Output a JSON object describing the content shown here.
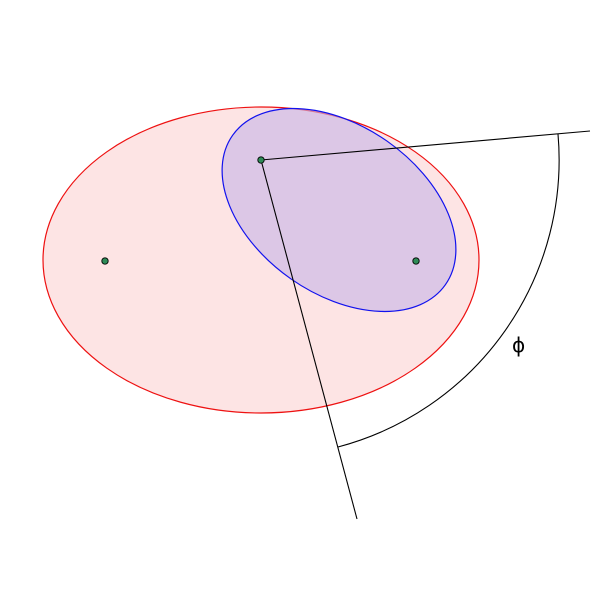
{
  "angle_label": "ϕ",
  "colors": {
    "large_ellipse_stroke": "#ee1111",
    "large_ellipse_fill": "#fde4e4",
    "small_ellipse_stroke": "#1111ee",
    "small_ellipse_fill": "#c8b4e6",
    "point_fill": "#2e8b57",
    "line": "#000000"
  }
}
